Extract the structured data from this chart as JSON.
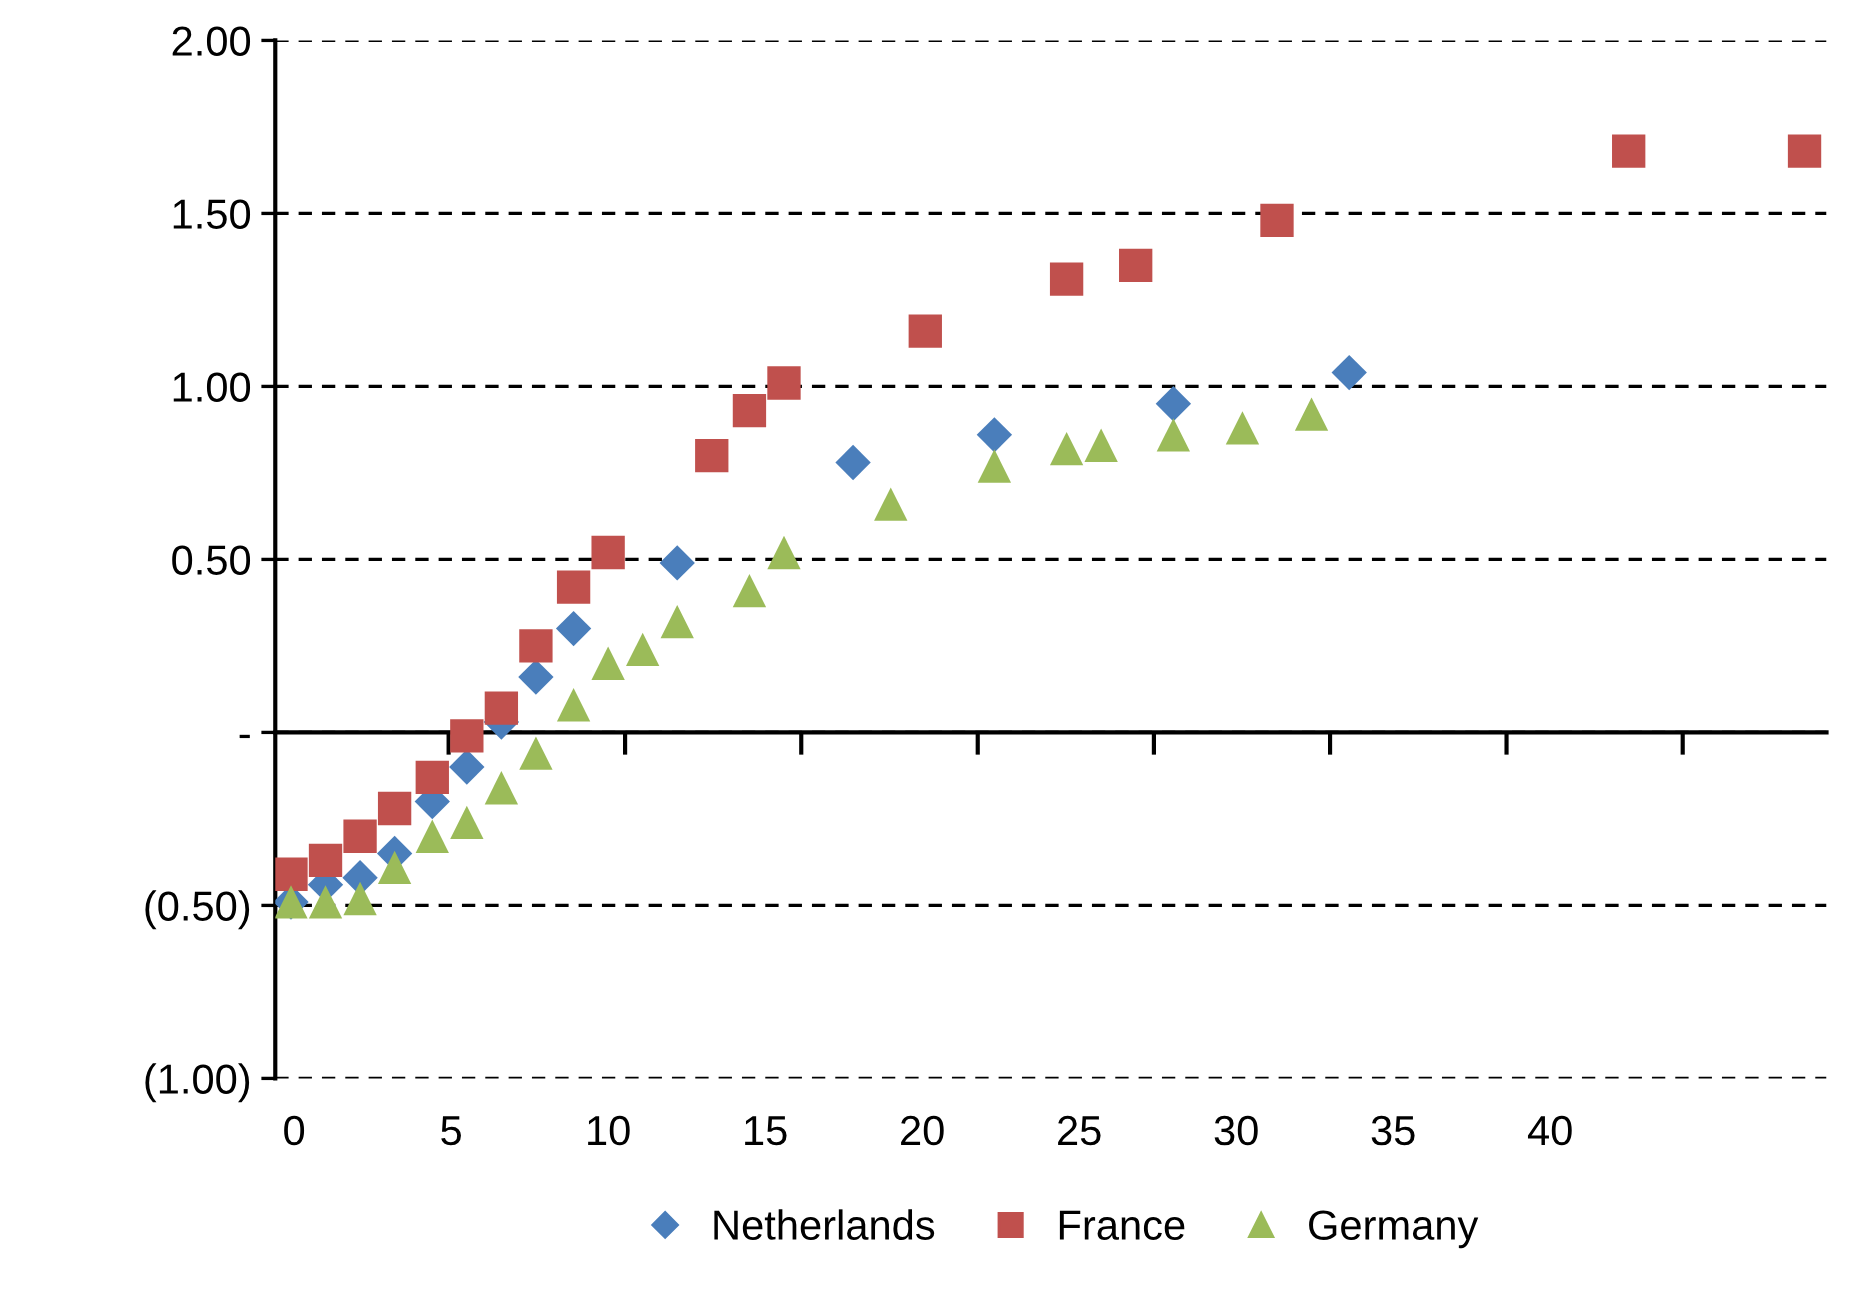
{
  "chart_data": {
    "type": "scatter",
    "series": [
      {
        "name": "Netherlands",
        "color": "#4a7ebb",
        "marker": "diamond",
        "x": [
          -0.1,
          1.0,
          2.1,
          3.2,
          4.4,
          5.5,
          6.6,
          7.7,
          8.9,
          12.2,
          17.8,
          22.3,
          28.0,
          33.6
        ],
        "values": [
          -0.49,
          -0.44,
          -0.42,
          -0.35,
          -0.2,
          -0.1,
          0.03,
          0.16,
          0.3,
          0.49,
          0.78,
          0.86,
          0.95,
          1.04
        ]
      },
      {
        "name": "France",
        "color": "#c0504d",
        "marker": "square",
        "x": [
          -0.1,
          1.0,
          2.1,
          3.2,
          4.4,
          5.5,
          6.6,
          7.7,
          8.9,
          10.0,
          13.3,
          14.5,
          15.6,
          20.1,
          24.6,
          26.8,
          31.3,
          42.5,
          48.1
        ],
        "values": [
          -0.41,
          -0.37,
          -0.3,
          -0.22,
          -0.13,
          -0.01,
          0.07,
          0.25,
          0.42,
          0.52,
          0.8,
          0.93,
          1.01,
          1.16,
          1.31,
          1.35,
          1.48,
          1.68,
          1.68
        ]
      },
      {
        "name": "Germany",
        "color": "#9bbb59",
        "marker": "triangle",
        "x": [
          -0.1,
          1.0,
          2.1,
          3.2,
          4.4,
          5.5,
          6.6,
          7.7,
          8.9,
          10.0,
          11.1,
          12.2,
          14.5,
          15.6,
          19.0,
          22.3,
          24.6,
          25.7,
          28.0,
          30.2,
          32.4
        ],
        "values": [
          -0.49,
          -0.49,
          -0.48,
          -0.39,
          -0.3,
          -0.26,
          -0.16,
          -0.06,
          0.08,
          0.2,
          0.24,
          0.32,
          0.41,
          0.52,
          0.66,
          0.77,
          0.82,
          0.83,
          0.86,
          0.88,
          0.92
        ]
      }
    ],
    "xlim": [
      -0.6,
      48.8
    ],
    "xticks": [
      0,
      5,
      10,
      15,
      20,
      25,
      30,
      35,
      40,
      {
        "value": 4.92,
        "label": null
      },
      {
        "value": 10.54,
        "label": null
      },
      {
        "value": 16.15,
        "label": null
      },
      {
        "value": 21.77,
        "label": null
      },
      {
        "value": 27.38,
        "label": null
      },
      {
        "value": 32.99,
        "label": null
      },
      {
        "value": 38.61,
        "label": null
      },
      {
        "value": 44.22,
        "label": null
      }
    ],
    "ylim": [
      -1,
      2
    ],
    "yticks": [
      {
        "value": -1,
        "label": "(1.00)"
      },
      {
        "value": -0.5,
        "label": "(0.50)"
      },
      {
        "value": 0,
        "label": "-"
      },
      {
        "value": 0.5,
        "label": "0.50"
      },
      {
        "value": 1,
        "label": "1.00"
      },
      {
        "value": 1.5,
        "label": "1.50"
      },
      {
        "value": 2,
        "label": "2.00"
      }
    ],
    "grid": "y",
    "legend": "bottom"
  }
}
